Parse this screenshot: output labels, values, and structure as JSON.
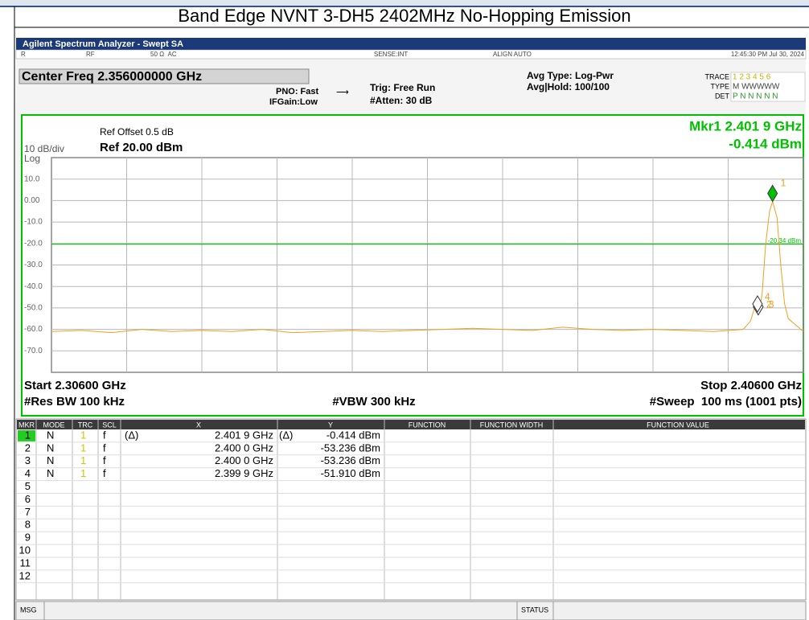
{
  "header": {
    "title": "Band Edge NVNT 3-DH5 2402MHz No-Hopping Emission"
  },
  "analyzer": {
    "app_title": "Agilent Spectrum Analyzer - Swept SA",
    "status_bar": [
      "R",
      "RF",
      "50 Ω  AC",
      "SENSE:INT",
      "ALIGN AUTO",
      "12:45:30 PM Jul 30, 2024"
    ],
    "center_freq": "Center Freq 2.356000000 GHz",
    "pno": "PNO: Fast",
    "ifgain": "IFGain:Low",
    "trig": "Trig: Free Run",
    "atten": "#Atten: 30 dB",
    "avg_type": "Avg Type: Log-Pwr",
    "avg_hold": "Avg|Hold: 100/100",
    "trace_labels": [
      "TRACE",
      "TYPE",
      "DET"
    ],
    "trace_nums": "1 2 3 4 5 6",
    "trace_type": "M WWWWW",
    "trace_det": "P N N N N N"
  },
  "chart_data": {
    "type": "line",
    "ref_offset": "Ref Offset 0.5 dB",
    "ref_level": "Ref 20.00 dBm",
    "scale": "10 dB/div",
    "scale_type": "Log",
    "marker_readout": [
      "Mkr1 2.401 9 GHz",
      "-0.414 dBm"
    ],
    "start": "Start 2.30600 GHz",
    "stop": "Stop 2.40600 GHz",
    "rbw": "#Res BW 100 kHz",
    "vbw": "#VBW 300 kHz",
    "sweep": "#Sweep  100 ms (1001 pts)",
    "xlim": [
      2.306,
      2.406
    ],
    "ylim": [
      -80,
      20
    ],
    "yticks": [
      {
        "value": 10,
        "label": "10.0"
      },
      {
        "value": 0,
        "label": "0.00"
      },
      {
        "value": -10,
        "label": "-10.0"
      },
      {
        "value": -20,
        "label": "-20.0"
      },
      {
        "value": -30,
        "label": "-30.0"
      },
      {
        "value": -40,
        "label": "-40.0"
      },
      {
        "value": -50,
        "label": "-50.0"
      },
      {
        "value": -60,
        "label": "-60.0"
      },
      {
        "value": -70,
        "label": "-70.0"
      }
    ],
    "grid": true,
    "display_line": {
      "value": -20.34,
      "label": "-20.34 dBm",
      "color": "#00c000"
    },
    "color": "#f0a020",
    "x": [
      2.306,
      2.31,
      2.314,
      2.318,
      2.322,
      2.326,
      2.33,
      2.334,
      2.338,
      2.342,
      2.346,
      2.35,
      2.354,
      2.358,
      2.362,
      2.366,
      2.37,
      2.374,
      2.378,
      2.382,
      2.386,
      2.39,
      2.394,
      2.398,
      2.3985,
      2.399,
      2.3995,
      2.4,
      2.4005,
      2.401,
      2.4015,
      2.4019,
      2.4025,
      2.403,
      2.4035,
      2.404,
      2.405,
      2.406
    ],
    "values": [
      -61,
      -60.5,
      -61.5,
      -60,
      -61,
      -60.5,
      -61,
      -60,
      -61.5,
      -61,
      -60.5,
      -61,
      -60.5,
      -60,
      -59.5,
      -60,
      -60.5,
      -59,
      -60,
      -60.5,
      -60,
      -60.5,
      -61,
      -60,
      -58,
      -56,
      -50,
      -53,
      -44,
      -20,
      -5,
      -0.4,
      -8,
      -30,
      -48,
      -55,
      -58,
      -61
    ],
    "markers": [
      {
        "label": "1",
        "x": 2.4019,
        "y": -0.414,
        "color": "#00c000"
      },
      {
        "label": "2",
        "x": 2.4,
        "y": -53.236,
        "color": "#ffffff"
      },
      {
        "label": "3",
        "x": 2.4,
        "y": -53.236,
        "color": "#ffffff"
      },
      {
        "label": "4",
        "x": 2.3999,
        "y": -51.91,
        "color": "#ffffff"
      }
    ]
  },
  "table": {
    "columns": [
      "MKR",
      "MODE",
      "TRC",
      "SCL",
      "X",
      "Y",
      "FUNCTION",
      "FUNCTION WIDTH",
      "FUNCTION VALUE"
    ],
    "rows": [
      {
        "mkr": "1",
        "mode": "N",
        "trc": "1",
        "scl": "f",
        "x_delta": "(Δ)",
        "x": "2.401 9 GHz",
        "y_delta": "(Δ)",
        "y": "-0.414 dBm"
      },
      {
        "mkr": "2",
        "mode": "N",
        "trc": "1",
        "scl": "f",
        "x": "2.400 0 GHz",
        "y": "-53.236 dBm"
      },
      {
        "mkr": "3",
        "mode": "N",
        "trc": "1",
        "scl": "f",
        "x": "2.400 0 GHz",
        "y": "-53.236 dBm"
      },
      {
        "mkr": "4",
        "mode": "N",
        "trc": "1",
        "scl": "f",
        "x": "2.399 9 GHz",
        "y": "-51.910 dBm"
      },
      {
        "mkr": "5"
      },
      {
        "mkr": "6"
      },
      {
        "mkr": "7"
      },
      {
        "mkr": "8"
      },
      {
        "mkr": "9"
      },
      {
        "mkr": "10"
      },
      {
        "mkr": "11"
      },
      {
        "mkr": "12"
      }
    ]
  },
  "footer": {
    "msg": "MSG",
    "status": "STATUS"
  }
}
